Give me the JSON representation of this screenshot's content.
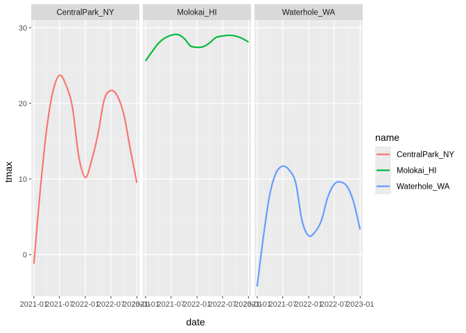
{
  "chart_data": {
    "type": "line",
    "xlabel": "date",
    "ylabel": "tmax",
    "ylim": [
      -5.5,
      31
    ],
    "y_ticks": [
      0,
      10,
      20,
      30
    ],
    "y_tick_labels": [
      "0",
      "10",
      "20",
      "30"
    ],
    "xlim": [
      "2020-12-13",
      "2023-01-19"
    ],
    "x_ticks": [
      "2021-01-01",
      "2021-07-01",
      "2022-01-01",
      "2022-07-01",
      "2023-01-01"
    ],
    "x_tick_labels": [
      "2021-01",
      "2021-07",
      "2022-01",
      "2022-07",
      "2023-01"
    ],
    "grid": true,
    "legend": {
      "title": "name",
      "position": "right"
    },
    "facets": [
      "CentralPark_NY",
      "Molokai_HI",
      "Waterhole_WA"
    ],
    "series": [
      {
        "name": "CentralPark_NY",
        "color": "#F8766D",
        "x": [
          "2021-01-01",
          "2021-02-15",
          "2021-04-01",
          "2021-05-15",
          "2021-07-01",
          "2021-08-15",
          "2021-10-01",
          "2021-11-15",
          "2022-01-01",
          "2022-02-15",
          "2022-04-01",
          "2022-05-15",
          "2022-07-01",
          "2022-08-15",
          "2022-10-01",
          "2022-11-15",
          "2023-01-01"
        ],
        "y": [
          -1.2,
          8.5,
          16.5,
          21.5,
          23.7,
          22.5,
          19.5,
          13.0,
          10.2,
          12.5,
          16.0,
          20.5,
          21.7,
          21.0,
          18.5,
          14.0,
          9.5
        ]
      },
      {
        "name": "Molokai_HI",
        "color": "#00BA38",
        "x": [
          "2021-01-01",
          "2021-02-15",
          "2021-04-01",
          "2021-05-15",
          "2021-07-01",
          "2021-08-15",
          "2021-10-01",
          "2021-11-15",
          "2022-01-01",
          "2022-02-15",
          "2022-04-01",
          "2022-05-15",
          "2022-07-01",
          "2022-08-15",
          "2022-10-01",
          "2022-11-15",
          "2023-01-01"
        ],
        "y": [
          25.6,
          26.8,
          27.9,
          28.6,
          29.0,
          29.1,
          28.6,
          27.6,
          27.4,
          27.5,
          28.0,
          28.7,
          28.9,
          29.0,
          28.9,
          28.6,
          28.1
        ]
      },
      {
        "name": "Waterhole_WA",
        "color": "#619CFF",
        "x": [
          "2021-01-01",
          "2021-02-15",
          "2021-04-01",
          "2021-05-15",
          "2021-07-01",
          "2021-08-15",
          "2021-10-01",
          "2021-11-15",
          "2022-01-01",
          "2022-02-15",
          "2022-04-01",
          "2022-05-15",
          "2022-07-01",
          "2022-08-15",
          "2022-10-01",
          "2022-11-15",
          "2023-01-01"
        ],
        "y": [
          -4.2,
          2.5,
          8.0,
          10.8,
          11.7,
          11.2,
          9.5,
          4.5,
          2.5,
          3.0,
          4.5,
          7.5,
          9.3,
          9.6,
          9.0,
          7.0,
          3.3
        ]
      }
    ]
  }
}
